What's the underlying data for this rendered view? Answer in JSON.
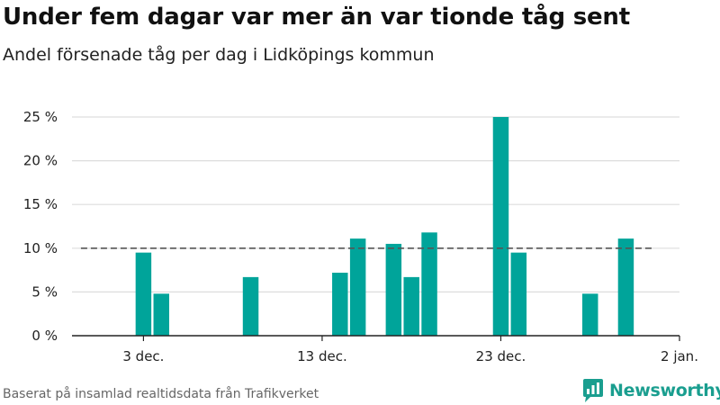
{
  "title": "Under fem dagar var mer än var tionde tåg sent",
  "subtitle": "Andel försenade tåg per dag i Lidköpings kommun",
  "footer": "Baserat på insamlad realtidsdata från Trafikverket",
  "brand": {
    "name": "Newsworthy",
    "icon": "newsworthy-logo-icon",
    "color": "#1a9e8f"
  },
  "chart_data": {
    "type": "bar",
    "title": "Under fem dagar var mer än var tionde tåg sent",
    "subtitle": "Andel försenade tåg per dag i Lidköpings kommun",
    "xlabel": "",
    "ylabel": "",
    "x_range": [
      "2019-11-29",
      "2020-01-02"
    ],
    "ylim": [
      0,
      25
    ],
    "y_ticks": [
      0,
      5,
      10,
      15,
      20,
      25
    ],
    "y_tick_labels": [
      "0 %",
      "5 %",
      "10 %",
      "15 %",
      "20 %",
      "25 %"
    ],
    "x_ticks": [
      "2019-12-03",
      "2019-12-13",
      "2019-12-23",
      "2020-01-02"
    ],
    "x_tick_labels": [
      "3 dec.",
      "13 dec.",
      "23 dec.",
      "2 jan."
    ],
    "grid": true,
    "bar_color": "#00a49a",
    "reference_line": {
      "value": 10,
      "style": "dashed",
      "color": "#555555",
      "from": "2019-11-30",
      "to": "2019-12-31"
    },
    "series": [
      {
        "x": [
          "2019-12-03",
          "2019-12-04",
          "2019-12-09",
          "2019-12-14",
          "2019-12-15",
          "2019-12-17",
          "2019-12-18",
          "2019-12-19",
          "2019-12-23",
          "2019-12-24",
          "2019-12-28",
          "2019-12-30"
        ],
        "values": [
          9.5,
          4.8,
          6.7,
          7.2,
          11.1,
          10.5,
          6.7,
          11.8,
          25.0,
          9.5,
          4.8,
          11.1
        ]
      }
    ]
  }
}
